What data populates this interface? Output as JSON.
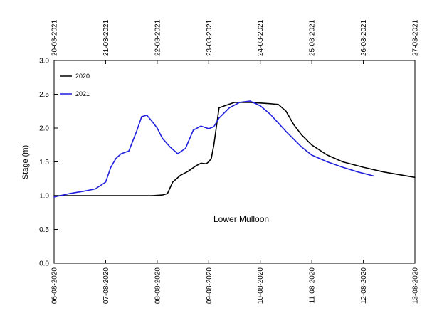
{
  "chart_data": {
    "type": "line",
    "title": "",
    "annotation": "Lower Mulloon",
    "ylabel": "Stage (m)",
    "xlabel": "",
    "ylim": [
      0.0,
      3.0
    ],
    "y_ticks": [
      "0.0",
      "0.5",
      "1.0",
      "1.5",
      "2.0",
      "2.5",
      "3.0"
    ],
    "grid": false,
    "legend_position": "top-left",
    "bottom_axis": {
      "range_days": [
        0,
        7
      ],
      "tick_labels": [
        "06-08-2020",
        "07-08-2020",
        "08-08-2020",
        "09-08-2020",
        "10-08-2020",
        "11-08-2020",
        "12-08-2020",
        "13-08-2020"
      ]
    },
    "top_axis": {
      "range_days": [
        0,
        7
      ],
      "tick_labels": [
        "20-03-2021",
        "21-03-2021",
        "22-03-2021",
        "23-03-2021",
        "24-03-2021",
        "25-03-2021",
        "26-03-2021",
        "27-03-2021"
      ]
    },
    "series": [
      {
        "name": "2020",
        "color": "#000000",
        "axis": "bottom",
        "x": [
          0,
          0.5,
          1.0,
          1.5,
          1.9,
          2.1,
          2.2,
          2.3,
          2.45,
          2.6,
          2.75,
          2.85,
          2.95,
          3.0,
          3.05,
          3.1,
          3.2,
          3.5,
          3.8,
          4.0,
          4.2,
          4.35,
          4.5,
          4.65,
          4.8,
          5.0,
          5.3,
          5.6,
          6.0,
          6.4,
          7.0
        ],
        "y": [
          1.0,
          1.0,
          1.0,
          1.0,
          1.0,
          1.01,
          1.03,
          1.2,
          1.3,
          1.36,
          1.44,
          1.48,
          1.47,
          1.5,
          1.55,
          1.75,
          2.3,
          2.38,
          2.38,
          2.37,
          2.36,
          2.35,
          2.25,
          2.05,
          1.9,
          1.75,
          1.6,
          1.5,
          1.42,
          1.35,
          1.27
        ]
      },
      {
        "name": "2021",
        "color": "#1f1fdd",
        "axis": "top",
        "x": [
          0,
          0.3,
          0.6,
          0.8,
          1.0,
          1.1,
          1.2,
          1.3,
          1.45,
          1.6,
          1.7,
          1.8,
          1.9,
          2.0,
          2.1,
          2.25,
          2.4,
          2.55,
          2.7,
          2.85,
          3.0,
          3.1,
          3.2,
          3.4,
          3.6,
          3.8,
          4.0,
          4.2,
          4.5,
          4.8,
          5.0,
          5.3,
          5.6,
          5.9,
          6.2
        ],
        "y": [
          0.98,
          1.03,
          1.07,
          1.1,
          1.2,
          1.42,
          1.55,
          1.62,
          1.66,
          1.95,
          2.17,
          2.19,
          2.1,
          2.0,
          1.85,
          1.72,
          1.62,
          1.7,
          1.97,
          2.03,
          1.99,
          2.02,
          2.15,
          2.3,
          2.38,
          2.4,
          2.33,
          2.2,
          1.95,
          1.72,
          1.6,
          1.5,
          1.42,
          1.35,
          1.29
        ]
      }
    ]
  }
}
